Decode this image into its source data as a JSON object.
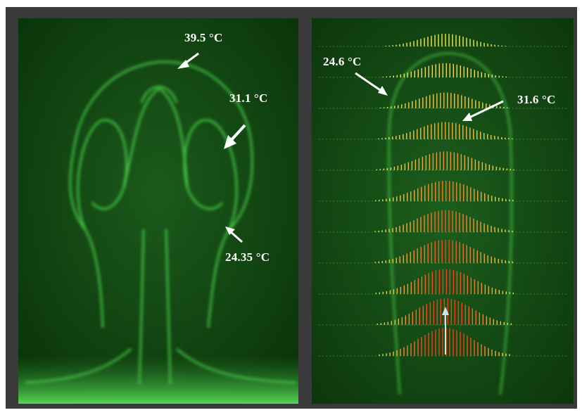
{
  "panels": {
    "left": {
      "labels": {
        "top_temp": "39.5 °C",
        "side_temp": "31.1 °C",
        "base_temp": "24.35 °C"
      }
    },
    "right": {
      "labels": {
        "outer_temp": "24.6 °C",
        "inner_temp": "31.6 °C"
      }
    }
  },
  "colors": {
    "background": "#0b3a0b",
    "fluorescence": "#4fe04f",
    "frame": "#3a3a3a",
    "vectors_low": "#f3e94a",
    "vectors_high": "#f0401a",
    "axis_line": "#bfeaf0"
  }
}
